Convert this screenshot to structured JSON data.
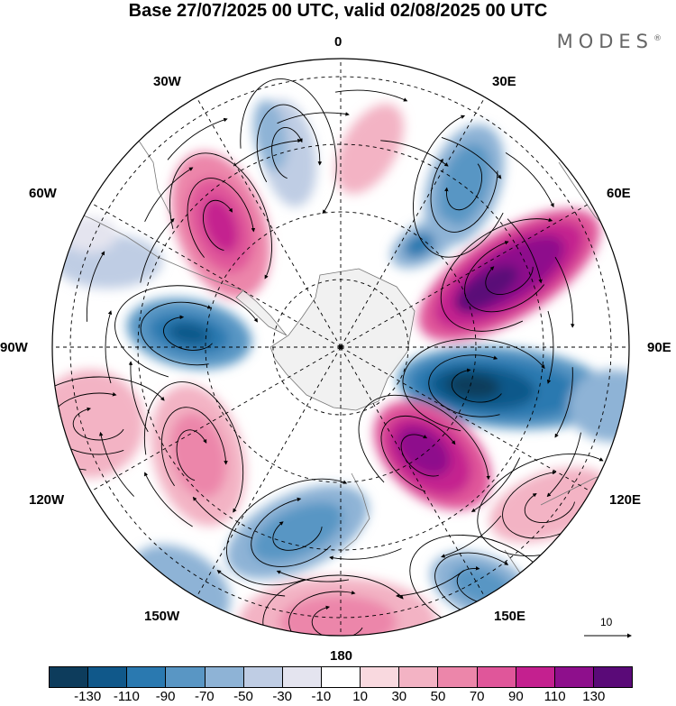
{
  "title": "Base 27/07/2025 00 UTC, valid 02/08/2025 00 UTC",
  "brand": "MODES",
  "brand_mark": "®",
  "longitude_labels": {
    "n": "0",
    "ne": "30E",
    "ene": "60E",
    "e": "90E",
    "ese": "120E",
    "se": "150E",
    "s": "180",
    "sw": "150W",
    "wsw": "120W",
    "w": "90W",
    "wnw": "60W",
    "nw": "30W"
  },
  "reference_vector": {
    "label": "10"
  },
  "colorbar": {
    "ticks": [
      "-130",
      "-110",
      "-90",
      "-70",
      "-50",
      "-30",
      "-10",
      "10",
      "30",
      "50",
      "70",
      "90",
      "110",
      "130"
    ],
    "colors": [
      "#0d3c5c",
      "#10588a",
      "#2a79b0",
      "#5996c4",
      "#8eb3d6",
      "#bfcde4",
      "#e4e4ef",
      "#ffffff",
      "#f9d9df",
      "#f3b3c4",
      "#ec86aa",
      "#e0569a",
      "#c4208f",
      "#8e0f8c",
      "#5a0a78"
    ]
  },
  "colors": {
    "land": "#ececec",
    "frame": "#000000",
    "grid": "#000000"
  }
}
